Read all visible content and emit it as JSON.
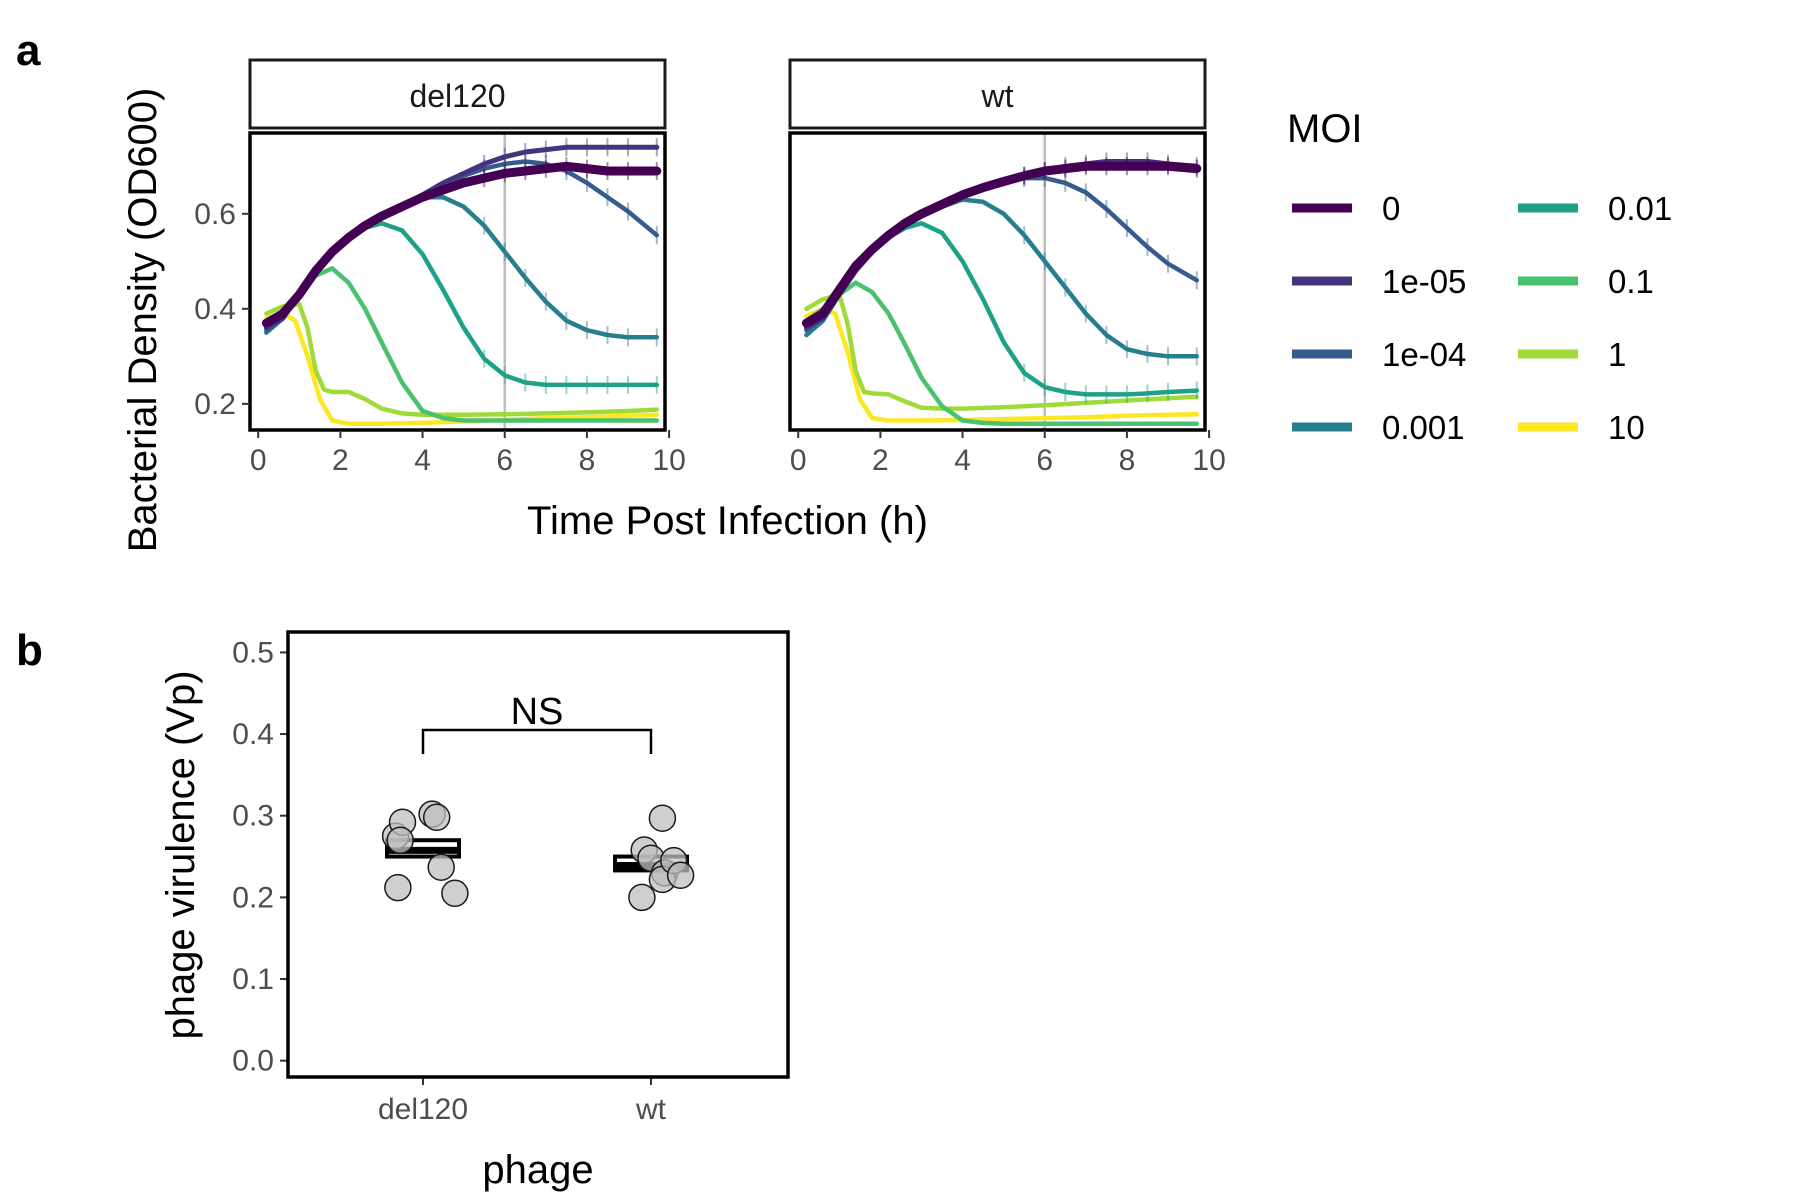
{
  "figure": {
    "panel_a_letter": "a",
    "panel_b_letter": "b"
  },
  "chart_data": [
    {
      "type": "line",
      "panel": "a",
      "facets": [
        "del120",
        "wt"
      ],
      "xlabel": "Time Post Infection (h)",
      "ylabel": "Bacterial Density (OD600)",
      "xlim": [
        -0.2,
        9.9
      ],
      "ylim": [
        0.145,
        0.77
      ],
      "xticks": [
        0,
        2,
        4,
        6,
        8,
        10
      ],
      "yticks": [
        0.2,
        0.4,
        0.6
      ],
      "reference_line_x": 6,
      "grid": false,
      "legend": {
        "title": "MOI",
        "position": "right",
        "ncol": 2
      },
      "series": [
        {
          "name": "0",
          "color": "#440154",
          "del120": {
            "x": [
              0.2,
              0.6,
              1.0,
              1.4,
              1.8,
              2.2,
              2.6,
              3.0,
              3.5,
              4.0,
              4.5,
              5.0,
              5.5,
              6.0,
              6.5,
              7.0,
              7.5,
              8.0,
              8.5,
              9.0,
              9.7
            ],
            "y": [
              0.37,
              0.39,
              0.43,
              0.48,
              0.52,
              0.55,
              0.575,
              0.595,
              0.615,
              0.635,
              0.65,
              0.665,
              0.675,
              0.685,
              0.69,
              0.695,
              0.7,
              0.695,
              0.69,
              0.69,
              0.69
            ]
          },
          "wt": {
            "x": [
              0.2,
              0.6,
              1.0,
              1.4,
              1.8,
              2.2,
              2.6,
              3.0,
              3.5,
              4.0,
              4.5,
              5.0,
              5.5,
              6.0,
              6.5,
              7.0,
              7.5,
              8.0,
              8.5,
              9.0,
              9.7
            ],
            "y": [
              0.37,
              0.39,
              0.44,
              0.49,
              0.525,
              0.555,
              0.58,
              0.6,
              0.62,
              0.64,
              0.655,
              0.668,
              0.68,
              0.69,
              0.695,
              0.7,
              0.7,
              0.7,
              0.7,
              0.7,
              0.695
            ]
          }
        },
        {
          "name": "1e-05",
          "color": "#46337e",
          "del120": {
            "x": [
              0.2,
              0.6,
              1.0,
              1.4,
              1.8,
              2.2,
              2.6,
              3.0,
              3.5,
              4.0,
              4.5,
              5.0,
              5.5,
              6.0,
              6.5,
              7.0,
              7.5,
              8.0,
              8.5,
              9.0,
              9.7
            ],
            "y": [
              0.36,
              0.38,
              0.43,
              0.48,
              0.52,
              0.55,
              0.575,
              0.595,
              0.615,
              0.64,
              0.665,
              0.685,
              0.705,
              0.72,
              0.73,
              0.735,
              0.74,
              0.74,
              0.74,
              0.74,
              0.74
            ]
          },
          "wt": {
            "x": [
              0.2,
              0.6,
              1.0,
              1.4,
              1.8,
              2.2,
              2.6,
              3.0,
              3.5,
              4.0,
              4.5,
              5.0,
              5.5,
              6.0,
              6.5,
              7.0,
              7.5,
              8.0,
              8.5,
              9.0,
              9.7
            ],
            "y": [
              0.36,
              0.38,
              0.43,
              0.48,
              0.52,
              0.55,
              0.575,
              0.595,
              0.615,
              0.635,
              0.655,
              0.67,
              0.68,
              0.69,
              0.7,
              0.705,
              0.71,
              0.71,
              0.71,
              0.705,
              0.7
            ]
          }
        },
        {
          "name": "1e-04",
          "color": "#365c8d",
          "del120": {
            "x": [
              0.2,
              0.6,
              1.0,
              1.4,
              1.8,
              2.2,
              2.6,
              3.0,
              3.5,
              4.0,
              4.5,
              5.0,
              5.5,
              6.0,
              6.5,
              7.0,
              7.5,
              8.0,
              8.5,
              9.0,
              9.7
            ],
            "y": [
              0.355,
              0.38,
              0.43,
              0.48,
              0.52,
              0.55,
              0.575,
              0.595,
              0.615,
              0.64,
              0.66,
              0.68,
              0.695,
              0.705,
              0.71,
              0.705,
              0.69,
              0.665,
              0.635,
              0.605,
              0.555
            ]
          },
          "wt": {
            "x": [
              0.2,
              0.6,
              1.0,
              1.4,
              1.8,
              2.2,
              2.6,
              3.0,
              3.5,
              4.0,
              4.5,
              5.0,
              5.5,
              6.0,
              6.5,
              7.0,
              7.5,
              8.0,
              8.5,
              9.0,
              9.7
            ],
            "y": [
              0.355,
              0.38,
              0.43,
              0.48,
              0.52,
              0.55,
              0.575,
              0.595,
              0.615,
              0.635,
              0.655,
              0.665,
              0.675,
              0.675,
              0.665,
              0.645,
              0.61,
              0.57,
              0.53,
              0.495,
              0.46
            ]
          }
        },
        {
          "name": "0.001",
          "color": "#277f8e",
          "del120": {
            "x": [
              0.2,
              0.6,
              1.0,
              1.4,
              1.8,
              2.2,
              2.6,
              3.0,
              3.5,
              4.0,
              4.5,
              5.0,
              5.5,
              6.0,
              6.5,
              7.0,
              7.5,
              8.0,
              8.5,
              9.0,
              9.7
            ],
            "y": [
              0.35,
              0.38,
              0.43,
              0.48,
              0.52,
              0.55,
              0.575,
              0.595,
              0.615,
              0.635,
              0.635,
              0.615,
              0.575,
              0.52,
              0.465,
              0.415,
              0.375,
              0.355,
              0.345,
              0.34,
              0.34
            ]
          },
          "wt": {
            "x": [
              0.2,
              0.6,
              1.0,
              1.4,
              1.8,
              2.2,
              2.6,
              3.0,
              3.5,
              4.0,
              4.5,
              5.0,
              5.5,
              6.0,
              6.5,
              7.0,
              7.5,
              8.0,
              8.5,
              9.0,
              9.7
            ],
            "y": [
              0.345,
              0.375,
              0.43,
              0.48,
              0.52,
              0.55,
              0.575,
              0.595,
              0.615,
              0.63,
              0.625,
              0.6,
              0.555,
              0.5,
              0.445,
              0.39,
              0.345,
              0.315,
              0.305,
              0.3,
              0.3
            ]
          }
        },
        {
          "name": "0.01",
          "color": "#1fa187",
          "del120": {
            "x": [
              0.2,
              0.6,
              1.0,
              1.4,
              1.8,
              2.2,
              2.6,
              3.0,
              3.5,
              4.0,
              4.5,
              5.0,
              5.5,
              6.0,
              6.5,
              7.0,
              7.5,
              8.0,
              8.5,
              9.0,
              9.7
            ],
            "y": [
              0.35,
              0.38,
              0.43,
              0.48,
              0.52,
              0.55,
              0.57,
              0.58,
              0.565,
              0.515,
              0.44,
              0.36,
              0.295,
              0.26,
              0.245,
              0.24,
              0.24,
              0.24,
              0.24,
              0.24,
              0.24
            ]
          },
          "wt": {
            "x": [
              0.2,
              0.6,
              1.0,
              1.4,
              1.8,
              2.2,
              2.6,
              3.0,
              3.5,
              4.0,
              4.5,
              5.0,
              5.5,
              6.0,
              6.5,
              7.0,
              7.5,
              8.0,
              8.5,
              9.0,
              9.7
            ],
            "y": [
              0.345,
              0.375,
              0.43,
              0.48,
              0.52,
              0.55,
              0.57,
              0.58,
              0.56,
              0.5,
              0.42,
              0.33,
              0.265,
              0.235,
              0.225,
              0.22,
              0.22,
              0.22,
              0.222,
              0.225,
              0.228
            ]
          }
        },
        {
          "name": "0.1",
          "color": "#4ac16d",
          "del120": {
            "x": [
              0.2,
              0.6,
              1.0,
              1.4,
              1.8,
              2.2,
              2.6,
              3.0,
              3.5,
              4.0,
              4.5,
              5.0,
              5.5,
              6.0,
              6.5,
              7.0,
              7.5,
              8.0,
              8.5,
              9.0,
              9.7
            ],
            "y": [
              0.37,
              0.39,
              0.43,
              0.47,
              0.485,
              0.455,
              0.4,
              0.33,
              0.245,
              0.185,
              0.17,
              0.165,
              0.165,
              0.165,
              0.165,
              0.165,
              0.165,
              0.165,
              0.165,
              0.165,
              0.165
            ]
          },
          "wt": {
            "x": [
              0.2,
              0.6,
              1.0,
              1.4,
              1.8,
              2.2,
              2.6,
              3.0,
              3.5,
              4.0,
              4.5,
              5.0,
              5.5,
              6.0,
              6.5,
              7.0,
              7.5,
              8.0,
              8.5,
              9.0,
              9.7
            ],
            "y": [
              0.375,
              0.4,
              0.43,
              0.455,
              0.435,
              0.39,
              0.325,
              0.255,
              0.195,
              0.165,
              0.16,
              0.158,
              0.158,
              0.158,
              0.158,
              0.158,
              0.158,
              0.158,
              0.158,
              0.158,
              0.158
            ]
          }
        },
        {
          "name": "1",
          "color": "#a0da39",
          "del120": {
            "x": [
              0.2,
              0.6,
              1.0,
              1.2,
              1.4,
              1.6,
              1.8,
              2.2,
              2.6,
              3.0,
              3.5,
              4.0,
              5.0,
              6.0,
              7.0,
              8.0,
              9.0,
              9.7
            ],
            "y": [
              0.39,
              0.405,
              0.41,
              0.36,
              0.27,
              0.23,
              0.225,
              0.225,
              0.21,
              0.19,
              0.18,
              0.177,
              0.177,
              0.178,
              0.18,
              0.182,
              0.185,
              0.188
            ]
          },
          "wt": {
            "x": [
              0.2,
              0.6,
              1.0,
              1.2,
              1.4,
              1.6,
              1.8,
              2.2,
              2.6,
              3.0,
              3.5,
              4.0,
              5.0,
              6.0,
              7.0,
              8.0,
              9.0,
              9.7
            ],
            "y": [
              0.4,
              0.42,
              0.43,
              0.37,
              0.27,
              0.225,
              0.222,
              0.22,
              0.205,
              0.192,
              0.19,
              0.19,
              0.193,
              0.197,
              0.202,
              0.207,
              0.212,
              0.215
            ]
          }
        },
        {
          "name": "10",
          "color": "#fde725",
          "del120": {
            "x": [
              0.2,
              0.6,
              0.9,
              1.2,
              1.5,
              1.8,
              2.2,
              2.6,
              3.0,
              4.0,
              5.0,
              6.0,
              7.0,
              8.0,
              9.0,
              9.7
            ],
            "y": [
              0.38,
              0.39,
              0.375,
              0.3,
              0.21,
              0.165,
              0.158,
              0.158,
              0.158,
              0.16,
              0.163,
              0.166,
              0.17,
              0.172,
              0.175,
              0.177
            ]
          },
          "wt": {
            "x": [
              0.2,
              0.6,
              0.9,
              1.2,
              1.5,
              1.8,
              2.2,
              2.6,
              3.0,
              4.0,
              5.0,
              6.0,
              7.0,
              8.0,
              9.0,
              9.7
            ],
            "y": [
              0.385,
              0.4,
              0.39,
              0.31,
              0.21,
              0.17,
              0.165,
              0.165,
              0.165,
              0.166,
              0.168,
              0.17,
              0.172,
              0.175,
              0.177,
              0.178
            ]
          }
        }
      ]
    },
    {
      "type": "scatter",
      "panel": "b",
      "xlabel": "phage",
      "ylabel": "phage virulence (Vp)",
      "categories": [
        "del120",
        "wt"
      ],
      "ylim": [
        -0.02,
        0.525
      ],
      "yticks": [
        0.0,
        0.1,
        0.2,
        0.3,
        0.4,
        0.5
      ],
      "ytick_labels": [
        "0.0",
        "0.1",
        "0.2",
        "0.3",
        "0.4",
        "0.5"
      ],
      "grid": false,
      "annotation": "NS",
      "bracket_y": 0.405,
      "mean_box": [
        {
          "category": "del120",
          "low": 0.25,
          "high": 0.27
        },
        {
          "category": "wt",
          "low": 0.233,
          "high": 0.25
        }
      ],
      "points": [
        {
          "category": "del120",
          "offset": -0.11,
          "value": 0.212
        },
        {
          "category": "del120",
          "offset": -0.12,
          "value": 0.275
        },
        {
          "category": "del120",
          "offset": -0.09,
          "value": 0.292
        },
        {
          "category": "del120",
          "offset": -0.1,
          "value": 0.27
        },
        {
          "category": "del120",
          "offset": 0.04,
          "value": 0.302
        },
        {
          "category": "del120",
          "offset": 0.06,
          "value": 0.298
        },
        {
          "category": "del120",
          "offset": 0.08,
          "value": 0.237
        },
        {
          "category": "del120",
          "offset": 0.14,
          "value": 0.205
        },
        {
          "category": "wt",
          "offset": -0.04,
          "value": 0.2
        },
        {
          "category": "wt",
          "offset": -0.03,
          "value": 0.258
        },
        {
          "category": "wt",
          "offset": 0.0,
          "value": 0.248
        },
        {
          "category": "wt",
          "offset": 0.05,
          "value": 0.297
        },
        {
          "category": "wt",
          "offset": 0.06,
          "value": 0.23
        },
        {
          "category": "wt",
          "offset": 0.05,
          "value": 0.222
        },
        {
          "category": "wt",
          "offset": 0.1,
          "value": 0.245
        },
        {
          "category": "wt",
          "offset": 0.13,
          "value": 0.227
        }
      ]
    }
  ]
}
